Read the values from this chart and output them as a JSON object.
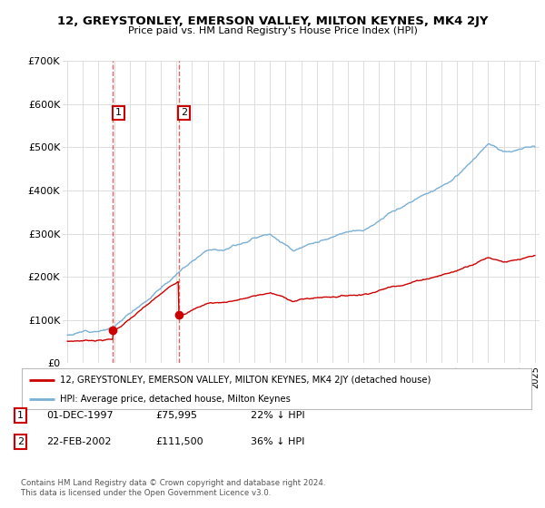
{
  "title": "12, GREYSTONLEY, EMERSON VALLEY, MILTON KEYNES, MK4 2JY",
  "subtitle": "Price paid vs. HM Land Registry's House Price Index (HPI)",
  "legend_label_red": "12, GREYSTONLEY, EMERSON VALLEY, MILTON KEYNES, MK4 2JY (detached house)",
  "legend_label_blue": "HPI: Average price, detached house, Milton Keynes",
  "table_entries": [
    {
      "num": "1",
      "date": "01-DEC-1997",
      "price": "£75,995",
      "hpi": "22% ↓ HPI"
    },
    {
      "num": "2",
      "date": "22-FEB-2002",
      "price": "£111,500",
      "hpi": "36% ↓ HPI"
    }
  ],
  "footnote": "Contains HM Land Registry data © Crown copyright and database right 2024.\nThis data is licensed under the Open Government Licence v3.0.",
  "ylim": [
    0,
    700000
  ],
  "yticks": [
    0,
    100000,
    200000,
    300000,
    400000,
    500000,
    600000,
    700000
  ],
  "ytick_labels": [
    "£0",
    "£100K",
    "£200K",
    "£300K",
    "£400K",
    "£500K",
    "£600K",
    "£700K"
  ],
  "x_start_year": 1995,
  "x_end_year": 2025,
  "sale1_year": 1997.92,
  "sale1_price": 75995,
  "sale1_label_price": 580000,
  "sale2_year": 2002.14,
  "sale2_price": 111500,
  "sale2_label_price": 580000,
  "red_color": "#cc0000",
  "blue_color": "#7ab0d4",
  "bg_color": "#ffffff",
  "grid_color": "#dddddd"
}
